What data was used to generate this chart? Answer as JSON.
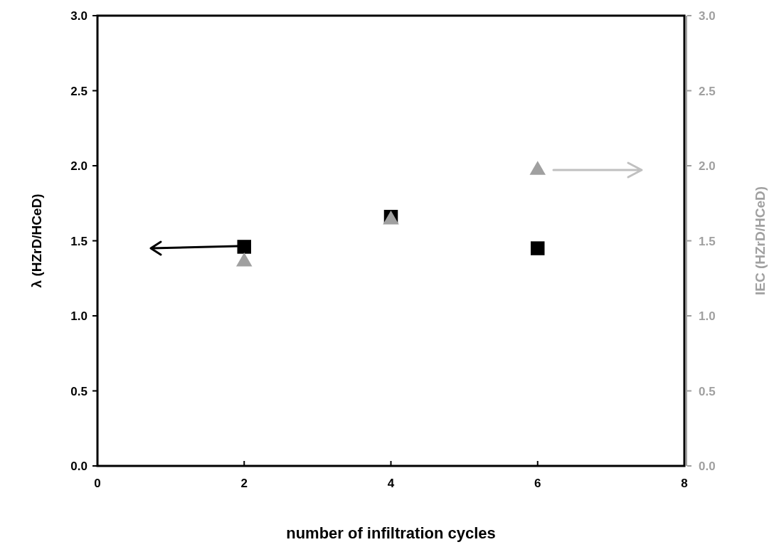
{
  "chart_data": {
    "type": "scatter",
    "xlabel": "number of infiltration cycles",
    "ylabel": "λ (HZrD/HCeD)",
    "y2label": "IEC (HZrD/HCeD)",
    "x": [
      2,
      4,
      6
    ],
    "series": [
      {
        "color": "#000000",
        "marker": "square",
        "values": [
          1.46,
          1.66,
          1.45
        ]
      },
      {
        "color": "#a0a0a0",
        "marker": "triangle",
        "axis": "y2",
        "values": [
          1.36,
          1.64,
          1.97
        ]
      }
    ],
    "xlim": [
      0,
      8
    ],
    "xticks": [
      0,
      2,
      4,
      6,
      8
    ],
    "ylim": [
      0,
      3
    ],
    "yticks": [
      {
        "value": 0,
        "label": "0.0"
      },
      {
        "value": 0.5,
        "label": "0.5"
      },
      {
        "value": 1,
        "label": "1.0"
      },
      {
        "value": 1.5,
        "label": "1.5"
      },
      {
        "value": 2,
        "label": "2.0"
      },
      {
        "value": 2.5,
        "label": "2.5"
      },
      {
        "value": 3,
        "label": "3.0"
      }
    ],
    "y2lim": [
      0,
      3
    ],
    "y2ticks": [
      {
        "value": 0,
        "label": "0.0"
      },
      {
        "value": 0.5,
        "label": "0.5"
      },
      {
        "value": 1,
        "label": "1.0"
      },
      {
        "value": 1.5,
        "label": "1.5"
      },
      {
        "value": 2,
        "label": "2.0"
      },
      {
        "value": 2.5,
        "label": "2.5"
      },
      {
        "value": 3,
        "label": "3.0"
      }
    ],
    "grid": false
  }
}
